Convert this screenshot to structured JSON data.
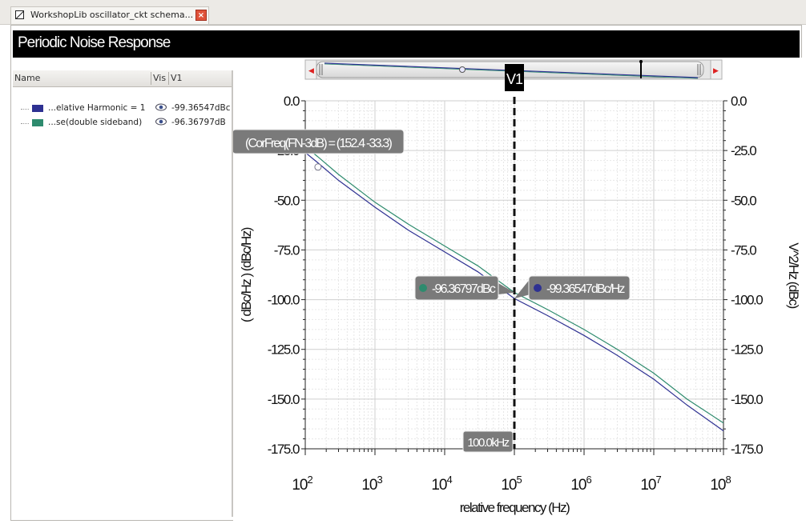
{
  "tab": {
    "title": "WorkshopLib oscillator_ckt schema...",
    "close_glyph": "×"
  },
  "window": {
    "title": "Periodic Noise Response"
  },
  "trace_table": {
    "columns": [
      "Name",
      "Vis",
      "V1"
    ],
    "rows": [
      {
        "name": "...elative Harmonic = 1",
        "value": "-99.36547dBc",
        "color": "#2e3192",
        "visible_icon": "eye-icon"
      },
      {
        "name": "...se(double sideband)",
        "value": "-96.36797dB",
        "color": "#2e8b6e",
        "visible_icon": "eye-icon"
      }
    ]
  },
  "overview": {
    "left_arrow": "◀",
    "right_arrow": "▶"
  },
  "colors": {
    "trace1": "#2e3192",
    "trace2": "#2e8b6e",
    "grid": "#dcdcdc",
    "marker_box": "#777777"
  },
  "chart_data": {
    "type": "line",
    "xlabel": "relative frequency (Hz)",
    "ylabel_left": "( dBc/Hz ) (dBc/Hz)",
    "ylabel_right": "V^2/Hz (dBc)",
    "x_scale": "log",
    "xlim": [
      100,
      100000000
    ],
    "ylim": [
      -175,
      0
    ],
    "x_ticks": [
      {
        "v": 100,
        "base": "10",
        "exp": "2"
      },
      {
        "v": 1000,
        "base": "10",
        "exp": "3"
      },
      {
        "v": 10000,
        "base": "10",
        "exp": "4"
      },
      {
        "v": 100000,
        "base": "10",
        "exp": "5"
      },
      {
        "v": 1000000,
        "base": "10",
        "exp": "6"
      },
      {
        "v": 10000000,
        "base": "10",
        "exp": "7"
      },
      {
        "v": 100000000,
        "base": "10",
        "exp": "8"
      }
    ],
    "y_ticks": [
      {
        "v": 0,
        "label": "0.0"
      },
      {
        "v": -25,
        "label": "-25.0"
      },
      {
        "v": -50,
        "label": "-50.0"
      },
      {
        "v": -75,
        "label": "-75.0"
      },
      {
        "v": -100,
        "label": "-100.0"
      },
      {
        "v": -125,
        "label": "-125.0"
      },
      {
        "v": -150,
        "label": "-150.0"
      },
      {
        "v": -175,
        "label": "-175.0"
      }
    ],
    "grid": true,
    "series": [
      {
        "color": "#2e3192",
        "x": [
          100,
          150,
          300,
          1000,
          3000,
          10000,
          30000,
          100000,
          300000,
          1000000,
          3000000,
          10000000,
          30000000,
          100000000
        ],
        "y": [
          -26,
          -31,
          -40,
          -53.5,
          -65,
          -76,
          -86,
          -99.4,
          -108,
          -118,
          -128,
          -140,
          -153,
          -166
        ]
      },
      {
        "color": "#2e8b6e",
        "x": [
          100,
          150,
          300,
          1000,
          3000,
          10000,
          30000,
          100000,
          300000,
          1000000,
          3000000,
          10000000,
          30000000,
          100000000
        ],
        "y": [
          -23,
          -28,
          -37,
          -51,
          -62,
          -73,
          -83,
          -96.4,
          -105,
          -115,
          -125,
          -137,
          -150,
          -162
        ]
      }
    ],
    "vertical_marker": {
      "name": "V1",
      "x": 100000,
      "label": "100.0kHz"
    },
    "point_marker": {
      "x": 152.4,
      "y": -33.3,
      "label": "(CorFreq(FN-3dB) = (152.4 -33.3)"
    },
    "marker_labels": [
      {
        "text": "-96.36797dBc",
        "color": "#2e8b6e",
        "x": 100000,
        "y": -96.4
      },
      {
        "text": "-99.36547dBc/Hz",
        "color": "#2e3192",
        "x": 100000,
        "y": -99.4
      }
    ]
  }
}
